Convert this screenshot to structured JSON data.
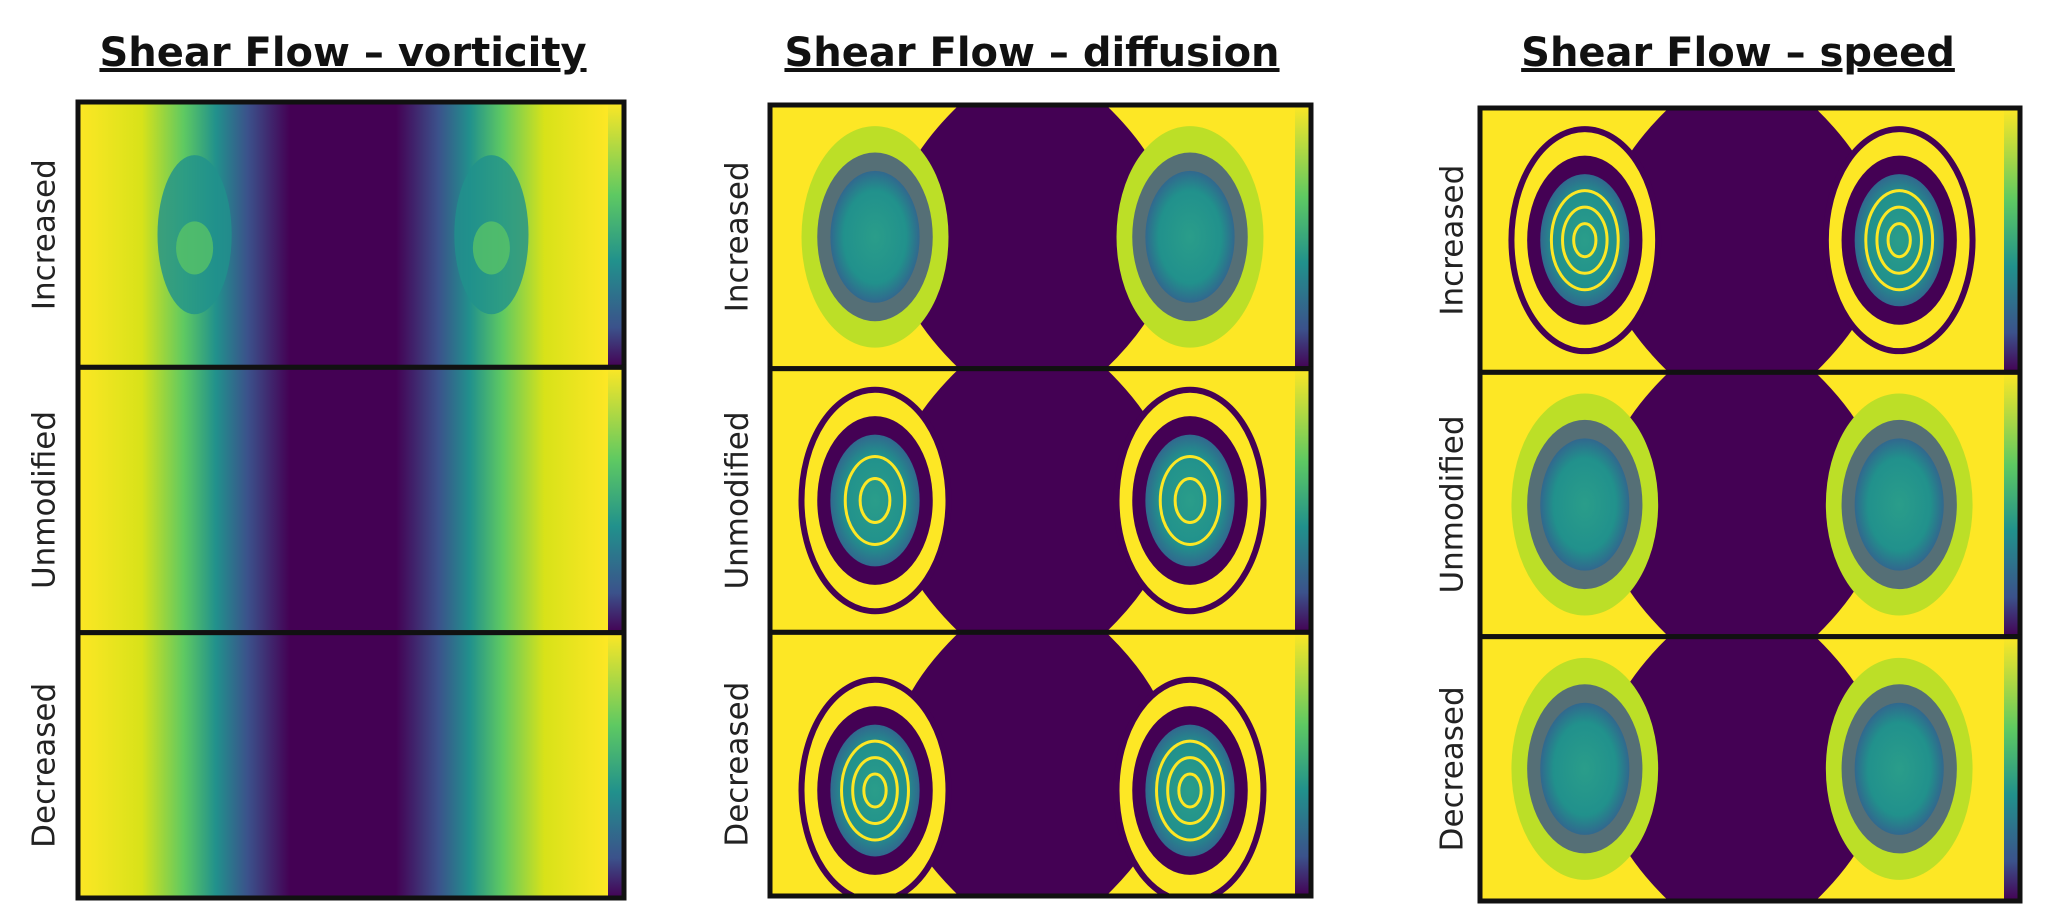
{
  "panels": [
    {
      "title": "Shear Flow – vorticity",
      "row_labels": [
        "Increased",
        "Unmodified",
        "Decreased"
      ]
    },
    {
      "title": "Shear Flow – diffusion",
      "row_labels": [
        "Increased",
        "Unmodified",
        "Decreased"
      ]
    },
    {
      "title": "Shear Flow – speed",
      "row_labels": [
        "Increased",
        "Unmodified",
        "Decreased"
      ]
    }
  ]
}
